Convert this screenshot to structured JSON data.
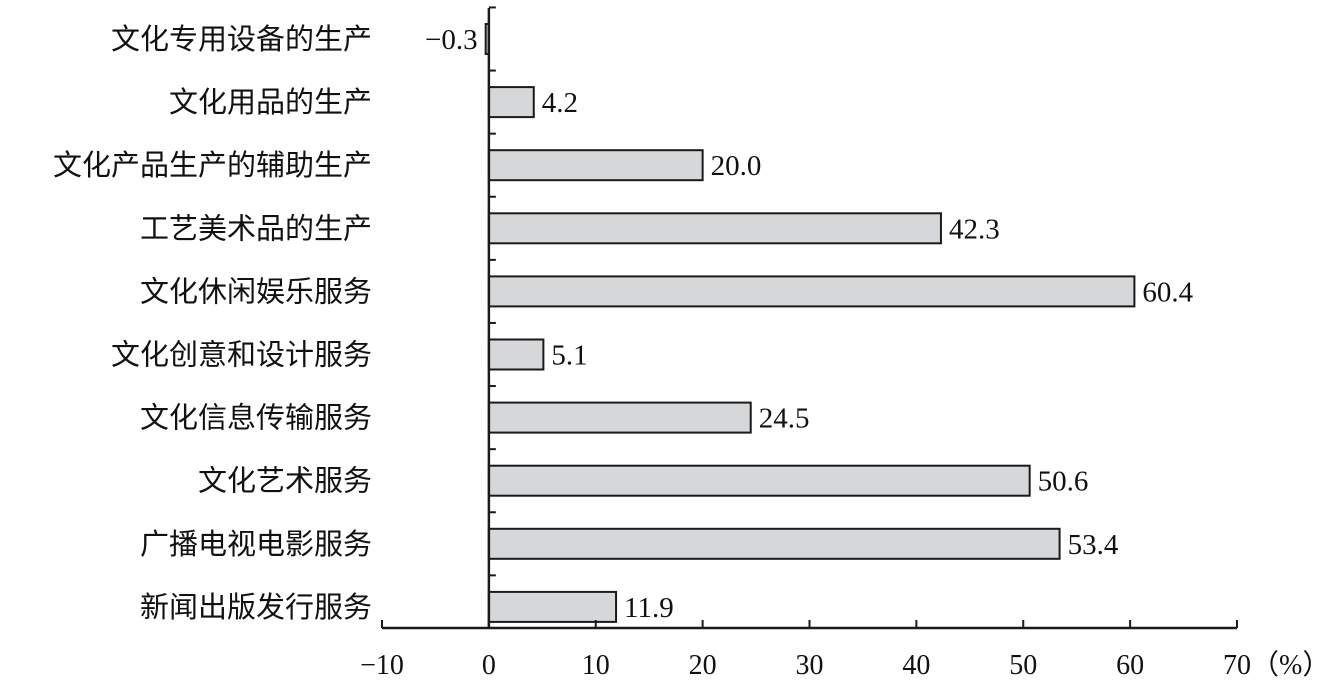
{
  "chart_data": {
    "type": "bar",
    "orientation": "horizontal",
    "categories": [
      "文化专用设备的生产",
      "文化用品的生产",
      "文化产品生产的辅助生产",
      "工艺美术品的生产",
      "文化休闲娱乐服务",
      "文化创意和设计服务",
      "文化信息传输服务",
      "文化艺术服务",
      "广播电视电影服务",
      "新闻出版发行服务"
    ],
    "values": [
      -0.3,
      4.2,
      20.0,
      42.3,
      60.4,
      5.1,
      24.5,
      50.6,
      53.4,
      11.9
    ],
    "value_labels": [
      "−0.3",
      "4.2",
      "20.0",
      "42.3",
      "60.4",
      "5.1",
      "24.5",
      "50.6",
      "53.4",
      "11.9"
    ],
    "x_ticks": [
      -10,
      0,
      10,
      20,
      30,
      40,
      50,
      60,
      70
    ],
    "x_tick_labels": [
      "−10",
      "0",
      "10",
      "20",
      "30",
      "40",
      "50",
      "60",
      "70"
    ],
    "xlim": [
      -10,
      70
    ],
    "x_unit": "（%）",
    "title": "",
    "xlabel": "",
    "ylabel": "",
    "grid": false,
    "colors": {
      "bar_fill": "#d6d7d9",
      "bar_stroke": "#1a1a1a"
    }
  }
}
